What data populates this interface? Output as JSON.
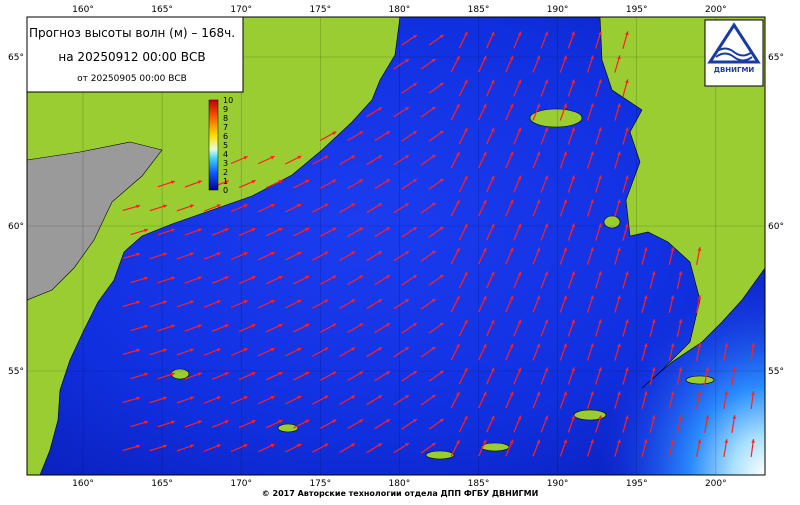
{
  "title": {
    "line1": "Прогноз высоты волн (м) – 168ч.",
    "line2": "на 20250912 00:00 ВСВ",
    "line3": "от 20250905 00:00 ВСВ"
  },
  "color_scale": {
    "labels": [
      "10",
      "9",
      "8",
      "7",
      "6",
      "5",
      "4",
      "3",
      "2",
      "1",
      "0"
    ]
  },
  "map": {
    "lon_labels": [
      "160°",
      "165°",
      "170°",
      "175°",
      "180°",
      "185°",
      "190°",
      "195°",
      "200°"
    ],
    "lat_labels": [
      "65°",
      "60°",
      "55°"
    ]
  },
  "logo": {
    "text": "ДВНИГМИ"
  },
  "footer": {
    "text": "© 2017 Авторские технологии отдела ДПП ФГБУ ДВНИГМИ"
  }
}
